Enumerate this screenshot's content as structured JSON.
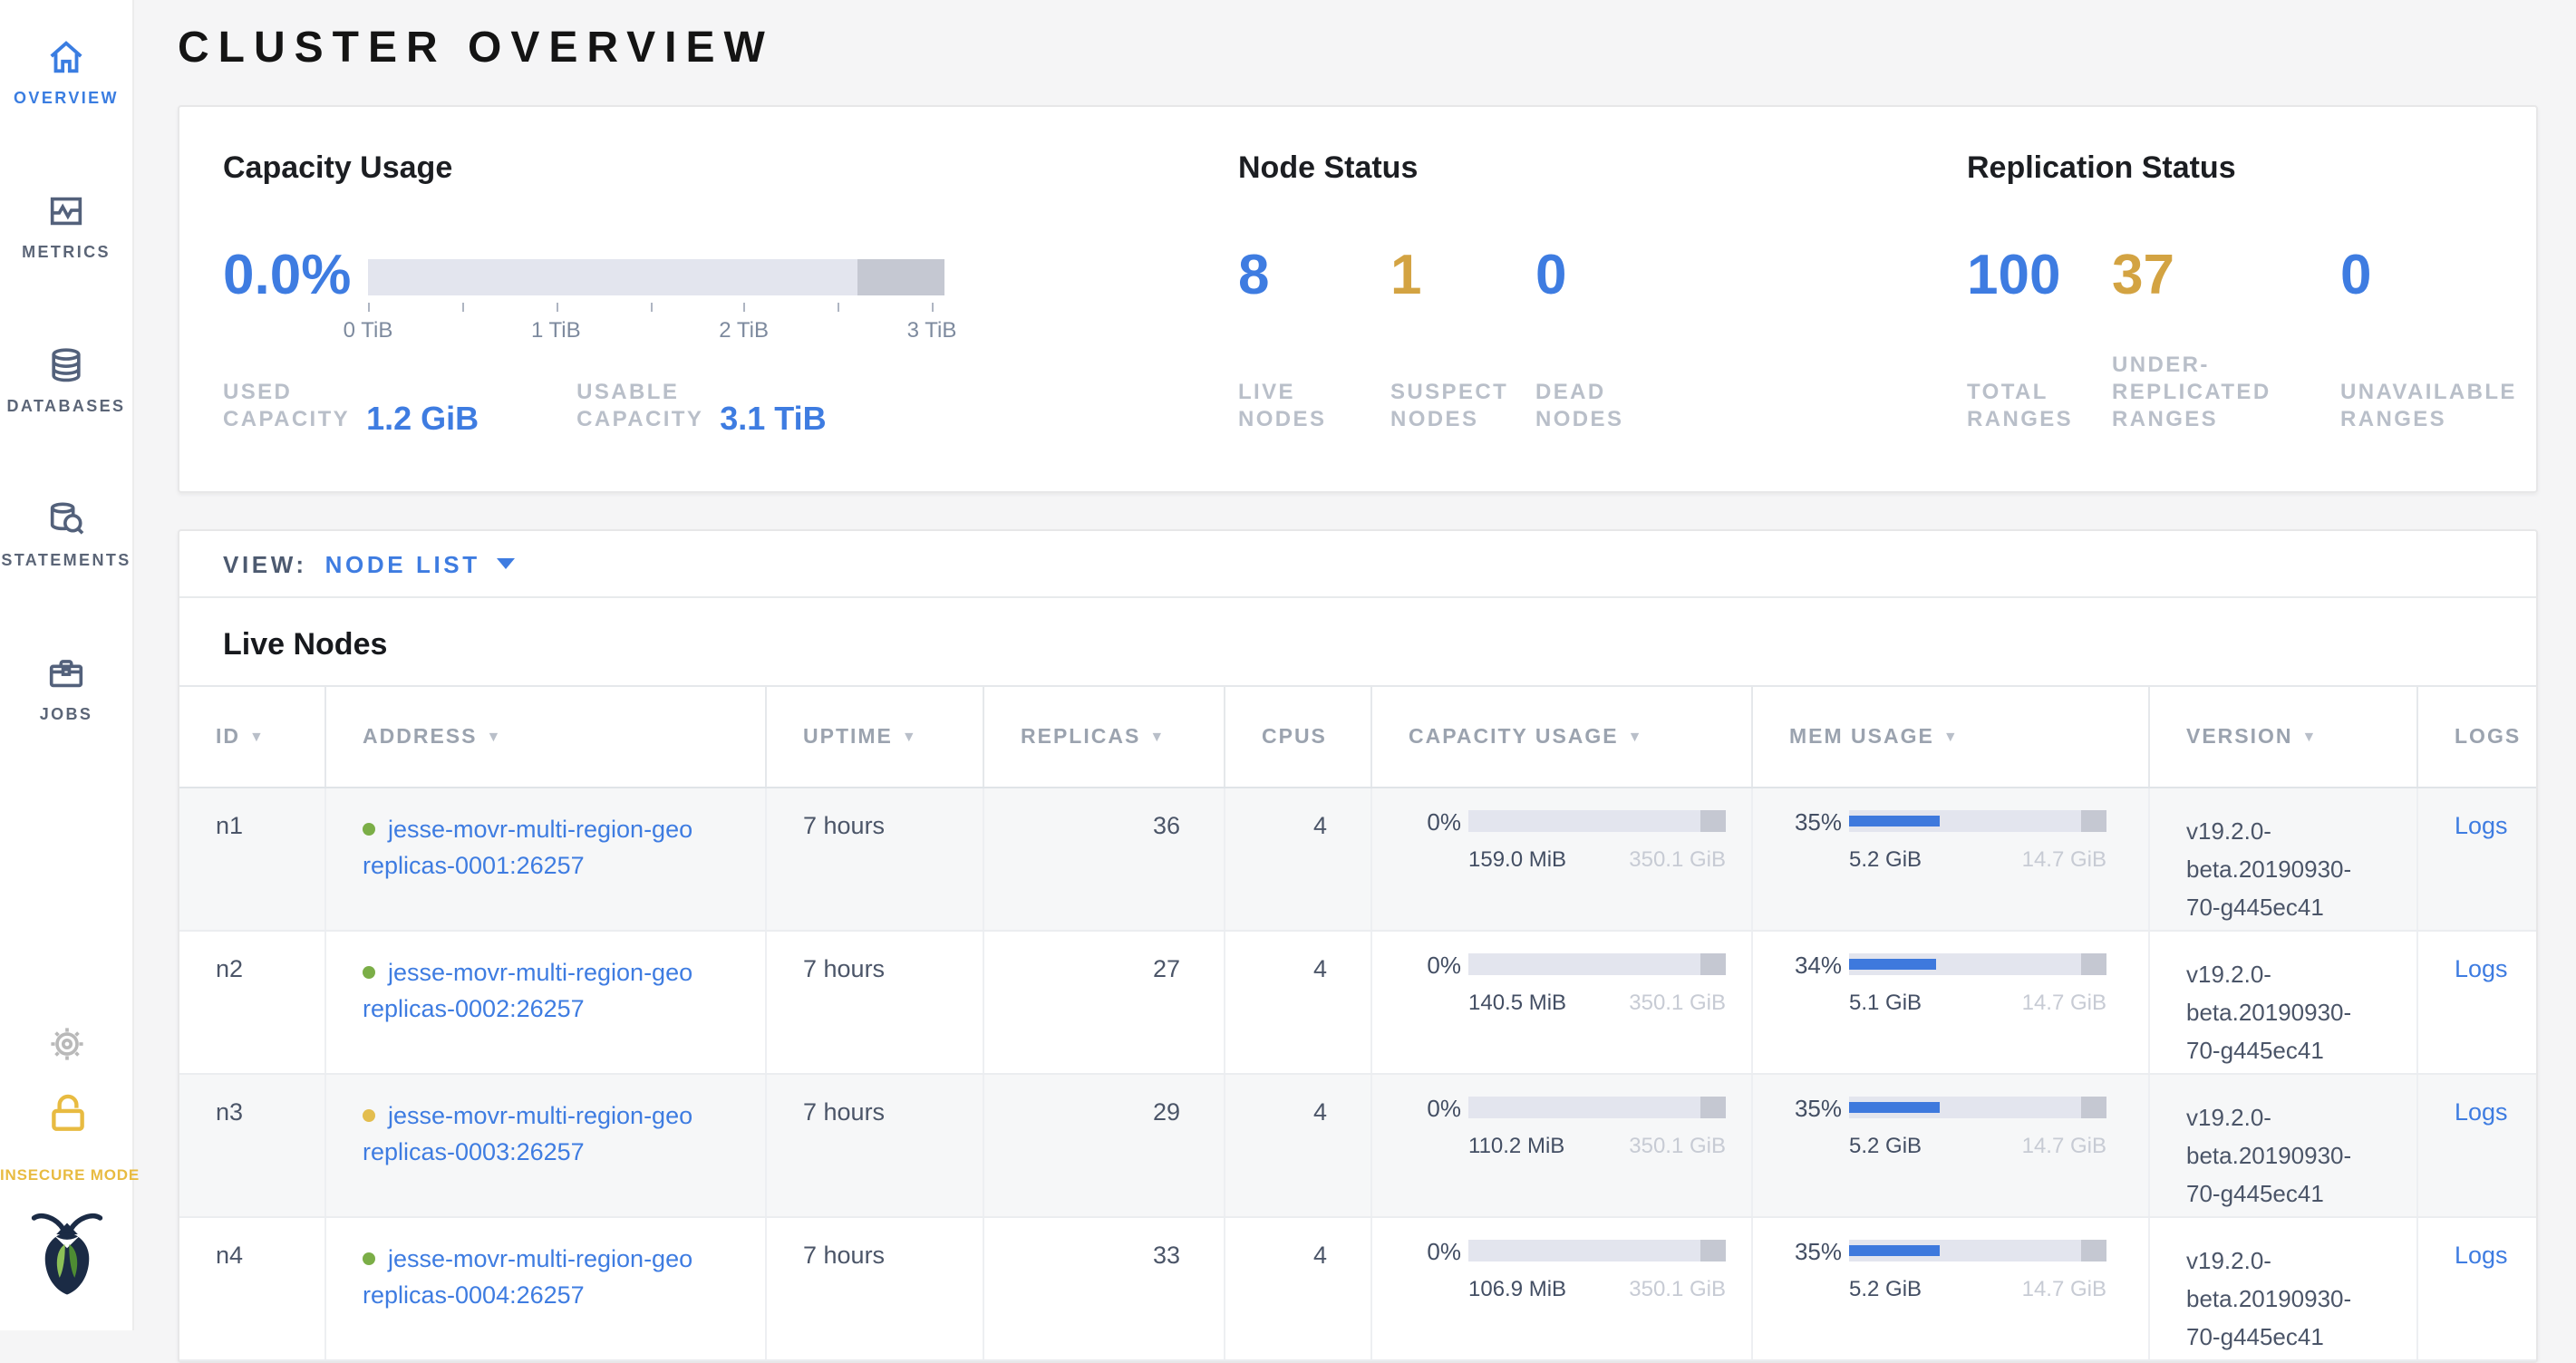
{
  "colors": {
    "accent_blue": "#3e7ce1",
    "warn_yellow": "#d3a342",
    "healthy_dot": "#7bae47",
    "suspect_dot": "#e3bd4e",
    "insecure_yellow": "#e8bb41"
  },
  "sidebar": {
    "items": [
      {
        "label": "OVERVIEW",
        "active": true
      },
      {
        "label": "METRICS",
        "active": false
      },
      {
        "label": "DATABASES",
        "active": false
      },
      {
        "label": "STATEMENTS",
        "active": false
      },
      {
        "label": "JOBS",
        "active": false
      }
    ],
    "insecure_label": "INSECURE MODE"
  },
  "page_title": "CLUSTER OVERVIEW",
  "summary": {
    "capacity": {
      "title": "Capacity Usage",
      "percent": "0.0%",
      "fill_pct": 0,
      "ticks": [
        "0 TiB",
        "1 TiB",
        "2 TiB",
        "3 TiB"
      ],
      "used_label": "USED\nCAPACITY",
      "used_value": "1.2 GiB",
      "usable_label": "USABLE\nCAPACITY",
      "usable_value": "3.1 TiB"
    },
    "node_status": {
      "title": "Node Status",
      "stats": [
        {
          "value": "8",
          "color": "#3e7ce1",
          "label": "LIVE\nNODES"
        },
        {
          "value": "1",
          "color": "#d3a342",
          "label": "SUSPECT\nNODES"
        },
        {
          "value": "0",
          "color": "#3e7ce1",
          "label": "DEAD\nNODES"
        }
      ]
    },
    "replication": {
      "title": "Replication Status",
      "stats": [
        {
          "value": "100",
          "color": "#3e7ce1",
          "label": "TOTAL\nRANGES"
        },
        {
          "value": "37",
          "color": "#d3a342",
          "label": "UNDER-\nREPLICATED\nRANGES"
        },
        {
          "value": "0",
          "color": "#3e7ce1",
          "label": "UNAVAILABLE\nRANGES"
        }
      ]
    }
  },
  "view_bar": {
    "label": "VIEW:",
    "selected": "NODE LIST"
  },
  "table": {
    "title": "Live Nodes",
    "columns": [
      {
        "label": "ID",
        "arrow": "▼"
      },
      {
        "label": "ADDRESS",
        "arrow": "▼"
      },
      {
        "label": "UPTIME",
        "arrow": "▼"
      },
      {
        "label": "REPLICAS",
        "arrow": "▼"
      },
      {
        "label": "CPUS",
        "arrow": ""
      },
      {
        "label": "CAPACITY USAGE",
        "arrow": "▼"
      },
      {
        "label": "MEM USAGE",
        "arrow": "▼"
      },
      {
        "label": "VERSION",
        "arrow": "▼"
      },
      {
        "label": "LOGS",
        "arrow": ""
      }
    ],
    "rows": [
      {
        "id": "n1",
        "status_color": "#7bae47",
        "address": {
          "line1": "jesse-movr-multi-region-geo",
          "line2": "replicas-0001:26257"
        },
        "uptime": "7 hours",
        "replicas": "36",
        "cpus": "4",
        "capacity": {
          "percent": "0%",
          "fill_pct": 0,
          "used": "159.0 MiB",
          "total": "350.1 GiB"
        },
        "memory": {
          "percent": "35%",
          "fill_pct": 35,
          "used": "5.2 GiB",
          "total": "14.7 GiB"
        },
        "version": "v19.2.0-beta.20190930-70-g445ec41",
        "logs_label": "Logs"
      },
      {
        "id": "n2",
        "status_color": "#7bae47",
        "address": {
          "line1": "jesse-movr-multi-region-geo",
          "line2": "replicas-0002:26257"
        },
        "uptime": "7 hours",
        "replicas": "27",
        "cpus": "4",
        "capacity": {
          "percent": "0%",
          "fill_pct": 0,
          "used": "140.5 MiB",
          "total": "350.1 GiB"
        },
        "memory": {
          "percent": "34%",
          "fill_pct": 34,
          "used": "5.1 GiB",
          "total": "14.7 GiB"
        },
        "version": "v19.2.0-beta.20190930-70-g445ec41",
        "logs_label": "Logs"
      },
      {
        "id": "n3",
        "status_color": "#e3bd4e",
        "address": {
          "line1": "jesse-movr-multi-region-geo",
          "line2": "replicas-0003:26257"
        },
        "uptime": "7 hours",
        "replicas": "29",
        "cpus": "4",
        "capacity": {
          "percent": "0%",
          "fill_pct": 0,
          "used": "110.2 MiB",
          "total": "350.1 GiB"
        },
        "memory": {
          "percent": "35%",
          "fill_pct": 35,
          "used": "5.2 GiB",
          "total": "14.7 GiB"
        },
        "version": "v19.2.0-beta.20190930-70-g445ec41",
        "logs_label": "Logs"
      },
      {
        "id": "n4",
        "status_color": "#7bae47",
        "address": {
          "line1": "jesse-movr-multi-region-geo",
          "line2": "replicas-0004:26257"
        },
        "uptime": "7 hours",
        "replicas": "33",
        "cpus": "4",
        "capacity": {
          "percent": "0%",
          "fill_pct": 0,
          "used": "106.9 MiB",
          "total": "350.1 GiB"
        },
        "memory": {
          "percent": "35%",
          "fill_pct": 35,
          "used": "5.2 GiB",
          "total": "14.7 GiB"
        },
        "version": "v19.2.0-beta.20190930-70-g445ec41",
        "logs_label": "Logs"
      }
    ]
  }
}
